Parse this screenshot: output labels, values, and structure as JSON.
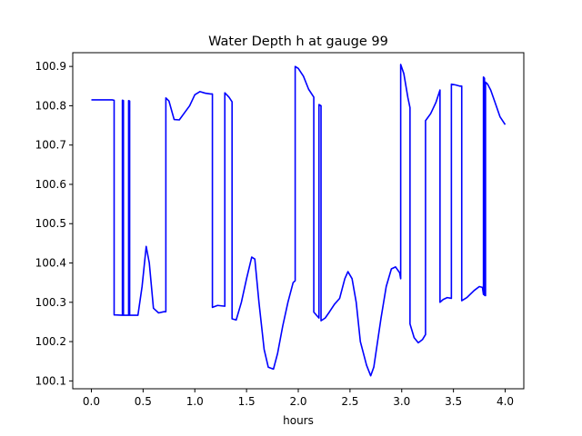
{
  "chart_data": {
    "type": "line",
    "title": "Water Depth h at gauge 99",
    "xlabel": "hours",
    "ylabel": "",
    "xlim": [
      -0.18,
      4.18
    ],
    "ylim": [
      100.08,
      100.935
    ],
    "grid": false,
    "xticks": [
      0.0,
      0.5,
      1.0,
      1.5,
      2.0,
      2.5,
      3.0,
      3.5,
      4.0
    ],
    "xtick_labels": [
      "0.0",
      "0.5",
      "1.0",
      "1.5",
      "2.0",
      "2.5",
      "3.0",
      "3.5",
      "4.0"
    ],
    "yticks": [
      100.1,
      100.2,
      100.3,
      100.4,
      100.5,
      100.6,
      100.7,
      100.8,
      100.9
    ],
    "ytick_labels": [
      "100.1",
      "100.2",
      "100.3",
      "100.4",
      "100.5",
      "100.6",
      "100.7",
      "100.8",
      "100.9"
    ],
    "series": [
      {
        "color": "#0000ff",
        "x": [
          0.0,
          0.1,
          0.2,
          0.22,
          0.22,
          0.3,
          0.3,
          0.31,
          0.31,
          0.36,
          0.36,
          0.37,
          0.37,
          0.45,
          0.49,
          0.53,
          0.56,
          0.6,
          0.65,
          0.7,
          0.72,
          0.72,
          0.75,
          0.8,
          0.85,
          0.9,
          0.95,
          1.0,
          1.05,
          1.1,
          1.15,
          1.17,
          1.17,
          1.22,
          1.29,
          1.29,
          1.33,
          1.36,
          1.36,
          1.4,
          1.45,
          1.5,
          1.55,
          1.58,
          1.62,
          1.67,
          1.71,
          1.76,
          1.8,
          1.85,
          1.9,
          1.95,
          1.97,
          1.97,
          2.0,
          2.05,
          2.1,
          2.15,
          2.15,
          2.2,
          2.2,
          2.22,
          2.22,
          2.26,
          2.3,
          2.35,
          2.4,
          2.45,
          2.48,
          2.52,
          2.56,
          2.6,
          2.66,
          2.7,
          2.73,
          2.8,
          2.85,
          2.9,
          2.94,
          2.98,
          2.99,
          2.99,
          3.02,
          3.06,
          3.08,
          3.08,
          3.12,
          3.16,
          3.2,
          3.23,
          3.23,
          3.28,
          3.33,
          3.37,
          3.37,
          3.4,
          3.44,
          3.48,
          3.48,
          3.52,
          3.56,
          3.58,
          3.58,
          3.63,
          3.7,
          3.75,
          3.78,
          3.79,
          3.79,
          3.8,
          3.8,
          3.81,
          3.81,
          3.83,
          3.86,
          3.9,
          3.95,
          4.0
        ],
        "y": [
          100.815,
          100.815,
          100.815,
          100.814,
          100.268,
          100.267,
          100.814,
          100.813,
          100.267,
          100.267,
          100.813,
          100.812,
          100.267,
          100.267,
          100.34,
          100.442,
          100.4,
          100.285,
          100.273,
          100.276,
          100.276,
          100.82,
          100.812,
          100.765,
          100.764,
          100.782,
          100.8,
          100.828,
          100.836,
          100.832,
          100.83,
          100.83,
          100.287,
          100.292,
          100.29,
          100.833,
          100.822,
          100.81,
          100.258,
          100.255,
          100.3,
          100.36,
          100.415,
          100.41,
          100.3,
          100.18,
          100.135,
          100.13,
          100.17,
          100.24,
          100.3,
          100.35,
          100.355,
          100.9,
          100.895,
          100.875,
          100.842,
          100.822,
          100.275,
          100.26,
          100.803,
          100.8,
          100.253,
          100.26,
          100.275,
          100.295,
          100.31,
          100.36,
          100.378,
          100.36,
          100.3,
          100.2,
          100.14,
          100.113,
          100.135,
          100.26,
          100.34,
          100.385,
          100.39,
          100.375,
          100.36,
          100.905,
          100.882,
          100.82,
          100.795,
          100.245,
          100.21,
          100.197,
          100.205,
          100.218,
          100.762,
          100.78,
          100.808,
          100.84,
          100.3,
          100.307,
          100.312,
          100.31,
          100.855,
          100.853,
          100.85,
          100.85,
          100.304,
          100.312,
          100.33,
          100.34,
          100.338,
          100.32,
          100.873,
          100.87,
          100.318,
          100.317,
          100.86,
          100.855,
          100.84,
          100.81,
          100.772,
          100.752
        ]
      }
    ]
  }
}
